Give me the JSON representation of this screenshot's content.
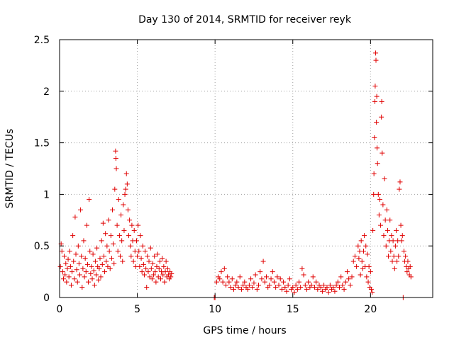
{
  "chart_data": {
    "type": "scatter",
    "title": "Day 130 of 2014, SRMTID for receiver reyk",
    "xlabel": "GPS time / hours",
    "ylabel": "SRMTID / TECUs",
    "xlim": [
      0,
      24
    ],
    "ylim": [
      0,
      2.5
    ],
    "xticks": [
      0,
      5,
      10,
      15,
      20
    ],
    "xtick_labels": [
      "0",
      "5",
      "10",
      "15",
      "20"
    ],
    "yticks": [
      0,
      0.5,
      1,
      1.5,
      2,
      2.5
    ],
    "ytick_labels": [
      "0",
      "0.5",
      "1",
      "1.5",
      "2",
      "2.5"
    ],
    "grid": true,
    "marker": "plus",
    "series": [
      {
        "name": "reyk",
        "color": "#e00000",
        "points": [
          [
            0.05,
            0.3
          ],
          [
            0.1,
            0.52
          ],
          [
            0.15,
            0.45
          ],
          [
            0.2,
            0.25
          ],
          [
            0.25,
            0.18
          ],
          [
            0.3,
            0.4
          ],
          [
            0.35,
            0.22
          ],
          [
            0.4,
            0.33
          ],
          [
            0.45,
            0.15
          ],
          [
            0.5,
            0.28
          ],
          [
            0.55,
            0.37
          ],
          [
            0.6,
            0.2
          ],
          [
            0.65,
            0.45
          ],
          [
            0.7,
            0.3
          ],
          [
            0.75,
            0.12
          ],
          [
            0.8,
            0.25
          ],
          [
            0.85,
            0.6
          ],
          [
            0.9,
            0.35
          ],
          [
            0.95,
            0.18
          ],
          [
            1.0,
            0.78
          ],
          [
            1.05,
            0.42
          ],
          [
            1.1,
            0.27
          ],
          [
            1.15,
            0.15
          ],
          [
            1.2,
            0.5
          ],
          [
            1.25,
            0.33
          ],
          [
            1.3,
            0.22
          ],
          [
            1.35,
            0.85
          ],
          [
            1.4,
            0.4
          ],
          [
            1.45,
            0.1
          ],
          [
            1.5,
            0.28
          ],
          [
            1.55,
            0.55
          ],
          [
            1.6,
            0.2
          ],
          [
            1.65,
            0.38
          ],
          [
            1.7,
            0.25
          ],
          [
            1.75,
            0.7
          ],
          [
            1.8,
            0.32
          ],
          [
            1.85,
            0.15
          ],
          [
            1.9,
            0.95
          ],
          [
            1.95,
            0.45
          ],
          [
            2.0,
            0.23
          ],
          [
            2.05,
            0.3
          ],
          [
            2.1,
            0.18
          ],
          [
            2.15,
            0.42
          ],
          [
            2.2,
            0.26
          ],
          [
            2.25,
            0.12
          ],
          [
            2.3,
            0.35
          ],
          [
            2.35,
            0.22
          ],
          [
            2.4,
            0.48
          ],
          [
            2.45,
            0.3
          ],
          [
            2.5,
            0.17
          ],
          [
            2.55,
            0.28
          ],
          [
            2.6,
            0.38
          ],
          [
            2.65,
            0.2
          ],
          [
            2.7,
            0.55
          ],
          [
            2.75,
            0.32
          ],
          [
            2.8,
            0.72
          ],
          [
            2.85,
            0.4
          ],
          [
            2.9,
            0.25
          ],
          [
            2.95,
            0.62
          ],
          [
            3.0,
            0.35
          ],
          [
            3.05,
            0.5
          ],
          [
            3.1,
            0.3
          ],
          [
            3.15,
            0.75
          ],
          [
            3.2,
            0.45
          ],
          [
            3.25,
            0.28
          ],
          [
            3.3,
            0.6
          ],
          [
            3.35,
            0.38
          ],
          [
            3.4,
            0.85
          ],
          [
            3.45,
            0.52
          ],
          [
            3.5,
            0.33
          ],
          [
            3.55,
            1.05
          ],
          [
            3.6,
            1.42
          ],
          [
            3.62,
            1.35
          ],
          [
            3.65,
            1.25
          ],
          [
            3.7,
            0.7
          ],
          [
            3.75,
            0.45
          ],
          [
            3.8,
            0.95
          ],
          [
            3.85,
            0.6
          ],
          [
            3.9,
            0.4
          ],
          [
            3.95,
            0.8
          ],
          [
            4.0,
            0.55
          ],
          [
            4.05,
            0.35
          ],
          [
            4.1,
            0.9
          ],
          [
            4.15,
            0.65
          ],
          [
            4.2,
            1.0
          ],
          [
            4.25,
            1.05
          ],
          [
            4.3,
            1.2
          ],
          [
            4.35,
            1.1
          ],
          [
            4.4,
            0.85
          ],
          [
            4.45,
            0.6
          ],
          [
            4.5,
            0.75
          ],
          [
            4.55,
            0.5
          ],
          [
            4.6,
            0.4
          ],
          [
            4.65,
            0.7
          ],
          [
            4.7,
            0.55
          ],
          [
            4.75,
            0.35
          ],
          [
            4.8,
            0.65
          ],
          [
            4.85,
            0.45
          ],
          [
            4.9,
            0.3
          ],
          [
            4.95,
            0.55
          ],
          [
            5.0,
            0.4
          ],
          [
            5.05,
            0.7
          ],
          [
            5.1,
            0.45
          ],
          [
            5.15,
            0.3
          ],
          [
            5.2,
            0.6
          ],
          [
            5.25,
            0.38
          ],
          [
            5.3,
            0.25
          ],
          [
            5.35,
            0.5
          ],
          [
            5.4,
            0.32
          ],
          [
            5.45,
            0.22
          ],
          [
            5.5,
            0.45
          ],
          [
            5.55,
            0.28
          ],
          [
            5.6,
            0.1
          ],
          [
            5.65,
            0.4
          ],
          [
            5.7,
            0.25
          ],
          [
            5.75,
            0.35
          ],
          [
            5.8,
            0.2
          ],
          [
            5.85,
            0.48
          ],
          [
            5.9,
            0.28
          ],
          [
            5.95,
            0.18
          ],
          [
            6.0,
            0.33
          ],
          [
            6.05,
            0.22
          ],
          [
            6.1,
            0.4
          ],
          [
            6.15,
            0.25
          ],
          [
            6.2,
            0.15
          ],
          [
            6.25,
            0.3
          ],
          [
            6.3,
            0.42
          ],
          [
            6.35,
            0.2
          ],
          [
            6.4,
            0.28
          ],
          [
            6.45,
            0.35
          ],
          [
            6.5,
            0.18
          ],
          [
            6.55,
            0.25
          ],
          [
            6.6,
            0.38
          ],
          [
            6.65,
            0.22
          ],
          [
            6.7,
            0.3
          ],
          [
            6.75,
            0.15
          ],
          [
            6.8,
            0.25
          ],
          [
            6.85,
            0.35
          ],
          [
            6.9,
            0.2
          ],
          [
            6.95,
            0.28
          ],
          [
            7.0,
            0.22
          ],
          [
            7.05,
            0.18
          ],
          [
            7.1,
            0.25
          ],
          [
            7.15,
            0.2
          ],
          [
            7.2,
            0.23
          ],
          [
            9.95,
            0.0
          ],
          [
            10.0,
            0.0
          ],
          [
            10.1,
            0.15
          ],
          [
            10.2,
            0.2
          ],
          [
            10.3,
            0.18
          ],
          [
            10.4,
            0.25
          ],
          [
            10.5,
            0.15
          ],
          [
            10.6,
            0.28
          ],
          [
            10.7,
            0.12
          ],
          [
            10.8,
            0.2
          ],
          [
            10.9,
            0.15
          ],
          [
            11.0,
            0.1
          ],
          [
            11.1,
            0.18
          ],
          [
            11.2,
            0.08
          ],
          [
            11.3,
            0.12
          ],
          [
            11.4,
            0.15
          ],
          [
            11.5,
            0.1
          ],
          [
            11.6,
            0.2
          ],
          [
            11.7,
            0.08
          ],
          [
            11.8,
            0.12
          ],
          [
            11.9,
            0.15
          ],
          [
            12.0,
            0.1
          ],
          [
            12.1,
            0.08
          ],
          [
            12.2,
            0.12
          ],
          [
            12.3,
            0.18
          ],
          [
            12.4,
            0.1
          ],
          [
            12.5,
            0.14
          ],
          [
            12.6,
            0.22
          ],
          [
            12.7,
            0.08
          ],
          [
            12.8,
            0.12
          ],
          [
            12.9,
            0.25
          ],
          [
            13.0,
            0.18
          ],
          [
            13.1,
            0.35
          ],
          [
            13.2,
            0.15
          ],
          [
            13.3,
            0.2
          ],
          [
            13.4,
            0.1
          ],
          [
            13.5,
            0.12
          ],
          [
            13.6,
            0.18
          ],
          [
            13.7,
            0.25
          ],
          [
            13.8,
            0.15
          ],
          [
            13.9,
            0.1
          ],
          [
            14.0,
            0.2
          ],
          [
            14.1,
            0.12
          ],
          [
            14.2,
            0.18
          ],
          [
            14.3,
            0.08
          ],
          [
            14.4,
            0.15
          ],
          [
            14.5,
            0.1
          ],
          [
            14.6,
            0.06
          ],
          [
            14.7,
            0.12
          ],
          [
            14.8,
            0.18
          ],
          [
            14.9,
            0.08
          ],
          [
            15.0,
            0.1
          ],
          [
            15.1,
            0.05
          ],
          [
            15.2,
            0.12
          ],
          [
            15.3,
            0.08
          ],
          [
            15.4,
            0.15
          ],
          [
            15.5,
            0.1
          ],
          [
            15.6,
            0.28
          ],
          [
            15.7,
            0.22
          ],
          [
            15.8,
            0.12
          ],
          [
            15.9,
            0.08
          ],
          [
            16.0,
            0.15
          ],
          [
            16.1,
            0.1
          ],
          [
            16.2,
            0.12
          ],
          [
            16.3,
            0.2
          ],
          [
            16.4,
            0.1
          ],
          [
            16.5,
            0.15
          ],
          [
            16.6,
            0.08
          ],
          [
            16.7,
            0.12
          ],
          [
            16.8,
            0.1
          ],
          [
            16.9,
            0.06
          ],
          [
            17.0,
            0.12
          ],
          [
            17.1,
            0.08
          ],
          [
            17.2,
            0.1
          ],
          [
            17.3,
            0.05
          ],
          [
            17.4,
            0.12
          ],
          [
            17.5,
            0.08
          ],
          [
            17.6,
            0.1
          ],
          [
            17.7,
            0.06
          ],
          [
            17.8,
            0.12
          ],
          [
            17.9,
            0.15
          ],
          [
            18.0,
            0.1
          ],
          [
            18.1,
            0.2
          ],
          [
            18.2,
            0.12
          ],
          [
            18.3,
            0.08
          ],
          [
            18.4,
            0.15
          ],
          [
            18.5,
            0.25
          ],
          [
            18.6,
            0.18
          ],
          [
            18.7,
            0.12
          ],
          [
            18.8,
            0.2
          ],
          [
            18.9,
            0.35
          ],
          [
            19.0,
            0.4
          ],
          [
            19.1,
            0.3
          ],
          [
            19.2,
            0.5
          ],
          [
            19.25,
            0.38
          ],
          [
            19.3,
            0.45
          ],
          [
            19.35,
            0.22
          ],
          [
            19.4,
            0.55
          ],
          [
            19.45,
            0.35
          ],
          [
            19.5,
            0.28
          ],
          [
            19.55,
            0.45
          ],
          [
            19.6,
            0.6
          ],
          [
            19.65,
            0.3
          ],
          [
            19.7,
            0.5
          ],
          [
            19.75,
            0.2
          ],
          [
            19.8,
            0.42
          ],
          [
            19.85,
            0.15
          ],
          [
            19.9,
            0.3
          ],
          [
            19.95,
            0.1
          ],
          [
            20.0,
            0.25
          ],
          [
            20.05,
            0.08
          ],
          [
            20.1,
            0.05
          ],
          [
            20.15,
            0.65
          ],
          [
            20.2,
            1.0
          ],
          [
            20.22,
            1.2
          ],
          [
            20.25,
            1.55
          ],
          [
            20.28,
            1.9
          ],
          [
            20.3,
            2.05
          ],
          [
            20.33,
            2.37
          ],
          [
            20.35,
            2.3
          ],
          [
            20.38,
            1.7
          ],
          [
            20.4,
            1.95
          ],
          [
            20.42,
            1.45
          ],
          [
            20.45,
            1.3
          ],
          [
            20.5,
            1.0
          ],
          [
            20.55,
            0.8
          ],
          [
            20.6,
            0.95
          ],
          [
            20.65,
            0.7
          ],
          [
            20.7,
            1.75
          ],
          [
            20.72,
            1.9
          ],
          [
            20.75,
            1.4
          ],
          [
            20.8,
            0.9
          ],
          [
            20.85,
            0.6
          ],
          [
            20.9,
            1.15
          ],
          [
            20.95,
            0.75
          ],
          [
            21.0,
            0.5
          ],
          [
            21.05,
            0.85
          ],
          [
            21.1,
            0.65
          ],
          [
            21.15,
            0.4
          ],
          [
            21.2,
            0.55
          ],
          [
            21.25,
            0.75
          ],
          [
            21.3,
            0.45
          ],
          [
            21.35,
            0.6
          ],
          [
            21.4,
            0.35
          ],
          [
            21.45,
            0.55
          ],
          [
            21.5,
            0.4
          ],
          [
            21.55,
            0.28
          ],
          [
            21.6,
            0.5
          ],
          [
            21.65,
            0.65
          ],
          [
            21.7,
            0.35
          ],
          [
            21.75,
            0.55
          ],
          [
            21.8,
            0.4
          ],
          [
            21.85,
            1.05
          ],
          [
            21.9,
            1.12
          ],
          [
            21.95,
            0.7
          ],
          [
            22.0,
            0.55
          ],
          [
            22.05,
            0.6
          ],
          [
            22.1,
            0.0
          ],
          [
            22.15,
            0.45
          ],
          [
            22.2,
            0.35
          ],
          [
            22.25,
            0.4
          ],
          [
            22.3,
            0.3
          ],
          [
            22.35,
            0.25
          ],
          [
            22.4,
            0.35
          ],
          [
            22.45,
            0.28
          ],
          [
            22.5,
            0.22
          ],
          [
            22.55,
            0.3
          ],
          [
            22.6,
            0.2
          ]
        ]
      }
    ]
  }
}
